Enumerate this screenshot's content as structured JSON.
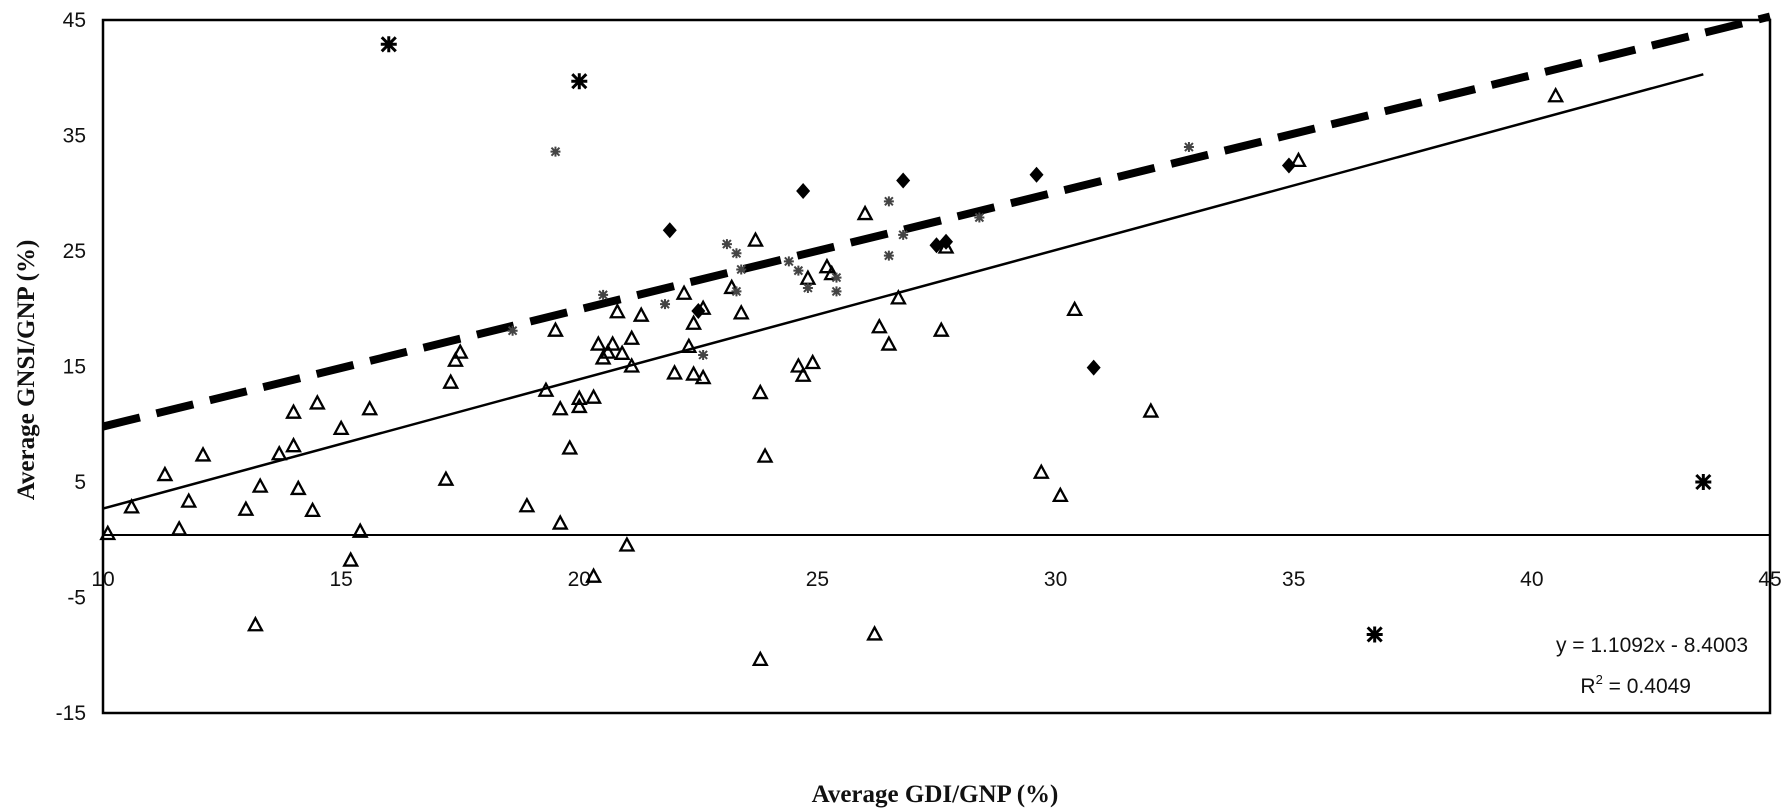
{
  "chart_data": {
    "type": "scatter",
    "title": "",
    "xlabel": "Average GDI/GNP (%)",
    "ylabel": "Average GNSI/GNP (%)",
    "xlim": [
      10,
      45
    ],
    "ylim": [
      -15,
      45
    ],
    "xticks": [
      "10",
      "15",
      "20",
      "25",
      "30",
      "35",
      "40",
      "45"
    ],
    "yticks": [
      "45",
      "35",
      "25",
      "15",
      "5",
      "-5",
      "-15"
    ],
    "grid": false,
    "legend": "none",
    "series": [
      {
        "marker": "triangle",
        "points": [
          [
            10.1,
            0.5
          ],
          [
            10.6,
            2.8
          ],
          [
            11.3,
            5.6
          ],
          [
            11.6,
            0.9
          ],
          [
            11.8,
            3.3
          ],
          [
            12.1,
            7.3
          ],
          [
            13.0,
            2.6
          ],
          [
            13.2,
            -7.4
          ],
          [
            13.3,
            4.6
          ],
          [
            13.7,
            7.4
          ],
          [
            14.0,
            8.1
          ],
          [
            14.0,
            11.0
          ],
          [
            14.1,
            4.4
          ],
          [
            14.4,
            2.5
          ],
          [
            14.5,
            11.8
          ],
          [
            15.0,
            9.6
          ],
          [
            15.2,
            -1.8
          ],
          [
            15.4,
            0.7
          ],
          [
            15.6,
            11.3
          ],
          [
            17.2,
            5.2
          ],
          [
            17.3,
            13.6
          ],
          [
            17.4,
            15.5
          ],
          [
            17.5,
            16.2
          ],
          [
            18.9,
            2.9
          ],
          [
            19.3,
            12.9
          ],
          [
            19.5,
            18.1
          ],
          [
            19.6,
            1.4
          ],
          [
            19.6,
            11.3
          ],
          [
            19.8,
            7.9
          ],
          [
            20.0,
            11.5
          ],
          [
            20.0,
            12.2
          ],
          [
            20.3,
            12.3
          ],
          [
            20.3,
            -3.2
          ],
          [
            20.4,
            16.9
          ],
          [
            20.5,
            15.7
          ],
          [
            20.6,
            16.2
          ],
          [
            20.7,
            16.9
          ],
          [
            20.8,
            19.7
          ],
          [
            20.9,
            16.1
          ],
          [
            21.0,
            -0.5
          ],
          [
            21.1,
            17.4
          ],
          [
            21.1,
            15.0
          ],
          [
            21.3,
            19.4
          ],
          [
            22.0,
            14.4
          ],
          [
            22.2,
            21.3
          ],
          [
            22.3,
            16.7
          ],
          [
            22.4,
            18.7
          ],
          [
            22.4,
            14.3
          ],
          [
            22.6,
            20.0
          ],
          [
            22.6,
            14.0
          ],
          [
            23.2,
            21.8
          ],
          [
            23.4,
            19.6
          ],
          [
            23.7,
            25.9
          ],
          [
            23.8,
            12.7
          ],
          [
            23.8,
            -10.4
          ],
          [
            23.9,
            7.2
          ],
          [
            24.6,
            15.0
          ],
          [
            24.7,
            14.2
          ],
          [
            24.8,
            22.6
          ],
          [
            24.9,
            15.3
          ],
          [
            25.2,
            23.6
          ],
          [
            25.3,
            23.0
          ],
          [
            26.0,
            28.2
          ],
          [
            26.2,
            -8.2
          ],
          [
            26.3,
            18.4
          ],
          [
            26.5,
            16.9
          ],
          [
            26.7,
            20.9
          ],
          [
            27.6,
            18.1
          ],
          [
            27.7,
            25.3
          ],
          [
            29.7,
            5.8
          ],
          [
            30.1,
            3.8
          ],
          [
            30.4,
            19.9
          ],
          [
            32.0,
            11.1
          ],
          [
            35.1,
            32.8
          ],
          [
            40.5,
            38.4
          ]
        ]
      },
      {
        "marker": "diamond",
        "points": [
          [
            21.9,
            26.8
          ],
          [
            22.5,
            19.8
          ],
          [
            24.7,
            30.2
          ],
          [
            26.8,
            31.1
          ],
          [
            27.5,
            25.5
          ],
          [
            27.7,
            25.8
          ],
          [
            29.6,
            31.6
          ],
          [
            30.8,
            14.9
          ],
          [
            34.9,
            32.4
          ]
        ]
      },
      {
        "marker": "asterisk",
        "points": [
          [
            16.0,
            42.9
          ],
          [
            20.0,
            39.7
          ],
          [
            36.7,
            -8.2
          ],
          [
            43.6,
            5.0
          ]
        ]
      },
      {
        "marker": "small-star",
        "points": [
          [
            18.6,
            18.1
          ],
          [
            19.5,
            33.6
          ],
          [
            20.5,
            21.2
          ],
          [
            21.8,
            20.4
          ],
          [
            22.6,
            16.0
          ],
          [
            23.1,
            25.6
          ],
          [
            23.3,
            24.8
          ],
          [
            23.4,
            23.4
          ],
          [
            23.3,
            21.5
          ],
          [
            24.4,
            24.1
          ],
          [
            24.6,
            23.3
          ],
          [
            24.8,
            21.8
          ],
          [
            25.4,
            22.7
          ],
          [
            25.4,
            21.5
          ],
          [
            26.5,
            29.3
          ],
          [
            26.5,
            24.6
          ],
          [
            26.8,
            26.4
          ],
          [
            28.4,
            27.9
          ],
          [
            32.8,
            34.0
          ]
        ]
      }
    ],
    "trendlines": [
      {
        "style": "solid",
        "x": [
          10,
          43.6
        ],
        "y": [
          2.7,
          40.3
        ]
      },
      {
        "style": "dashed",
        "x": [
          10,
          45
        ],
        "y": [
          9.8,
          45.3
        ]
      }
    ],
    "annotation_lines": [
      "y = 1.1092x - 8.4003",
      "R",
      "2",
      " = 0.4049"
    ]
  }
}
